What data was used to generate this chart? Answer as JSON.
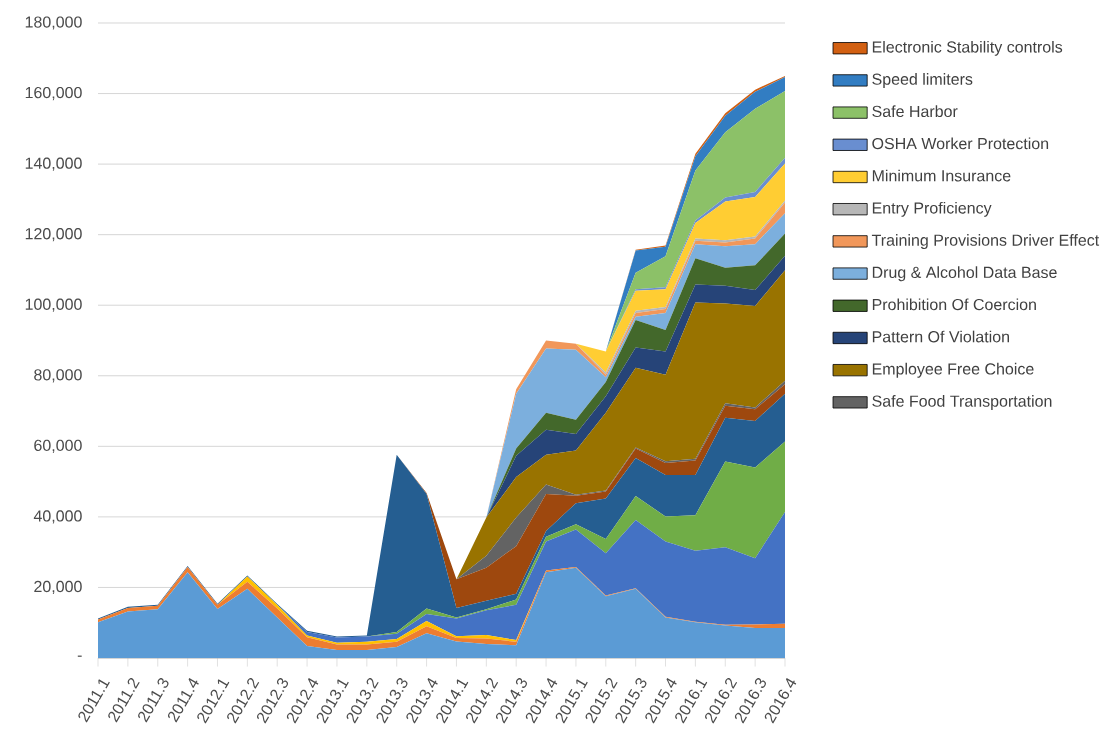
{
  "chart_data": {
    "type": "area",
    "stacked": true,
    "grid": "y",
    "legend": "right",
    "categories": [
      "2011.1",
      "2011.2",
      "2011.3",
      "2011.4",
      "2012.1",
      "2012.2",
      "2012.3",
      "2012.4",
      "2013.1",
      "2013.2",
      "2013.3",
      "2013.4",
      "2014.1",
      "2014.2",
      "2014.3",
      "2014.4",
      "2015.1",
      "2015.2",
      "2015.3",
      "2015.4",
      "2016.1",
      "2016.2",
      "2016.3",
      "2016.4"
    ],
    "ylim": [
      0,
      180000
    ],
    "yticks": [
      {
        "value": 0,
        "label": "-"
      },
      {
        "value": 20000,
        "label": "20,000"
      },
      {
        "value": 40000,
        "label": "40,000"
      },
      {
        "value": 60000,
        "label": "60,000"
      },
      {
        "value": 80000,
        "label": "80,000"
      },
      {
        "value": 100000,
        "label": "100,000"
      },
      {
        "value": 120000,
        "label": "120,000"
      },
      {
        "value": 140000,
        "label": "140,000"
      },
      {
        "value": 160000,
        "label": "160,000"
      },
      {
        "value": 180000,
        "label": "180,000"
      }
    ],
    "series": [
      {
        "color": "#5b9bd5",
        "values": [
          10100,
          13200,
          13800,
          24300,
          13900,
          19600,
          11500,
          3400,
          2300,
          2300,
          3100,
          7000,
          4700,
          4000,
          3600,
          24300,
          25600,
          17500,
          19600,
          11500,
          10100,
          9200,
          8500,
          8500
        ]
      },
      {
        "color": "#ed7d31",
        "values": [
          800,
          1000,
          1000,
          1500,
          1200,
          2000,
          2500,
          2500,
          1500,
          1500,
          1500,
          2000,
          1000,
          1500,
          1000,
          500,
          200,
          200,
          200,
          200,
          200,
          200,
          1000,
          1200
        ]
      },
      {
        "color": "#ffc000",
        "values": [
          0,
          0,
          0,
          0,
          0,
          1500,
          1000,
          500,
          500,
          800,
          800,
          1500,
          500,
          1000,
          500,
          0,
          0,
          0,
          0,
          0,
          0,
          0,
          0,
          0
        ]
      },
      {
        "color": "#4472c4",
        "values": [
          0,
          0,
          0,
          0,
          0,
          0,
          0,
          1000,
          1500,
          1500,
          1500,
          2000,
          5000,
          7000,
          10000,
          8200,
          10600,
          12000,
          19300,
          21300,
          20100,
          22000,
          18800,
          31700
        ]
      },
      {
        "color": "#70ad47",
        "values": [
          0,
          0,
          0,
          0,
          0,
          0,
          0,
          0,
          0,
          0,
          500,
          1500,
          300,
          300,
          1500,
          1400,
          1500,
          4000,
          6800,
          7100,
          10100,
          24300,
          25700,
          20000
        ]
      },
      {
        "color": "#255e91",
        "values": [
          300,
          300,
          300,
          300,
          300,
          300,
          300,
          300,
          300,
          300,
          50200,
          32500,
          2700,
          2400,
          1600,
          1600,
          6000,
          11500,
          10800,
          11800,
          11400,
          12400,
          13200,
          13500
        ]
      },
      {
        "color": "#9e480e",
        "values": [
          0,
          0,
          0,
          0,
          0,
          0,
          0,
          0,
          0,
          0,
          0,
          300,
          8100,
          9400,
          13500,
          10500,
          2100,
          2000,
          2700,
          3400,
          4100,
          3400,
          3300,
          2700
        ]
      },
      {
        "name": "Safe Food Transportation",
        "color": "#636363",
        "values": [
          0,
          0,
          0,
          0,
          0,
          0,
          0,
          0,
          0,
          0,
          0,
          0,
          0,
          3400,
          8100,
          2700,
          300,
          300,
          300,
          500,
          500,
          700,
          500,
          1000
        ]
      },
      {
        "name": "Employee Free Choice",
        "color": "#997300",
        "values": [
          0,
          0,
          0,
          0,
          0,
          0,
          0,
          0,
          0,
          0,
          0,
          0,
          0,
          10800,
          11500,
          8400,
          12500,
          22000,
          22600,
          24500,
          44300,
          28300,
          28800,
          31300
        ]
      },
      {
        "name": "Pattern Of Violation",
        "color": "#264478",
        "values": [
          0,
          0,
          0,
          0,
          0,
          0,
          0,
          0,
          0,
          0,
          0,
          0,
          0,
          0,
          6000,
          7100,
          4700,
          4700,
          5700,
          6600,
          5100,
          5000,
          4500,
          4100
        ]
      },
      {
        "name": "Prohibition Of Coercion",
        "color": "#43682b",
        "values": [
          0,
          0,
          0,
          0,
          0,
          0,
          0,
          0,
          0,
          0,
          0,
          0,
          0,
          0,
          2100,
          4800,
          4000,
          4000,
          7800,
          6100,
          7400,
          5100,
          7000,
          6300
        ]
      },
      {
        "name": "Drug & Alcohol Data Base",
        "color": "#7cafdd",
        "values": [
          0,
          0,
          0,
          0,
          0,
          0,
          0,
          0,
          0,
          0,
          0,
          0,
          0,
          0,
          15500,
          18200,
          19900,
          1400,
          900,
          4800,
          4000,
          6100,
          6000,
          5800
        ]
      },
      {
        "name": "Training Provisions Driver Effect",
        "color": "#f1975a",
        "values": [
          0,
          0,
          0,
          0,
          0,
          0,
          0,
          0,
          0,
          0,
          0,
          0,
          0,
          0,
          1300,
          2300,
          1700,
          700,
          1100,
          1100,
          1000,
          1100,
          1600,
          3000
        ]
      },
      {
        "name": "Entry Proficiency",
        "color": "#b7b7b7",
        "values": [
          0,
          0,
          0,
          0,
          0,
          0,
          0,
          0,
          0,
          0,
          0,
          0,
          0,
          0,
          0,
          0,
          0,
          600,
          600,
          600,
          600,
          600,
          600,
          600
        ]
      },
      {
        "name": "Minimum Insurance",
        "color": "#ffcd33",
        "values": [
          0,
          0,
          0,
          0,
          0,
          0,
          0,
          0,
          0,
          0,
          0,
          0,
          0,
          0,
          0,
          0,
          0,
          6000,
          5700,
          5000,
          4400,
          11000,
          11200,
          10500
        ]
      },
      {
        "name": "OSHA Worker Protection",
        "color": "#698ed0",
        "values": [
          0,
          0,
          0,
          0,
          0,
          0,
          0,
          0,
          0,
          0,
          0,
          0,
          0,
          0,
          0,
          0,
          0,
          0,
          400,
          600,
          700,
          1100,
          1400,
          1600
        ]
      },
      {
        "name": "Safe Harbor",
        "color": "#8cc168",
        "values": [
          0,
          0,
          0,
          0,
          0,
          0,
          0,
          0,
          0,
          0,
          0,
          0,
          0,
          0,
          0,
          0,
          0,
          0,
          4700,
          8800,
          14200,
          18500,
          23600,
          18900
        ]
      },
      {
        "name": "Speed limiters",
        "color": "#327dc2",
        "values": [
          0,
          0,
          0,
          0,
          0,
          0,
          0,
          0,
          0,
          0,
          0,
          0,
          0,
          0,
          0,
          0,
          0,
          0,
          6300,
          2700,
          4000,
          4700,
          4800,
          4000
        ]
      },
      {
        "name": "Electronic Stability controls",
        "color": "#d26012",
        "values": [
          0,
          0,
          0,
          0,
          0,
          0,
          0,
          0,
          0,
          0,
          0,
          0,
          0,
          0,
          0,
          0,
          0,
          0,
          200,
          300,
          700,
          700,
          600,
          300
        ]
      }
    ]
  }
}
